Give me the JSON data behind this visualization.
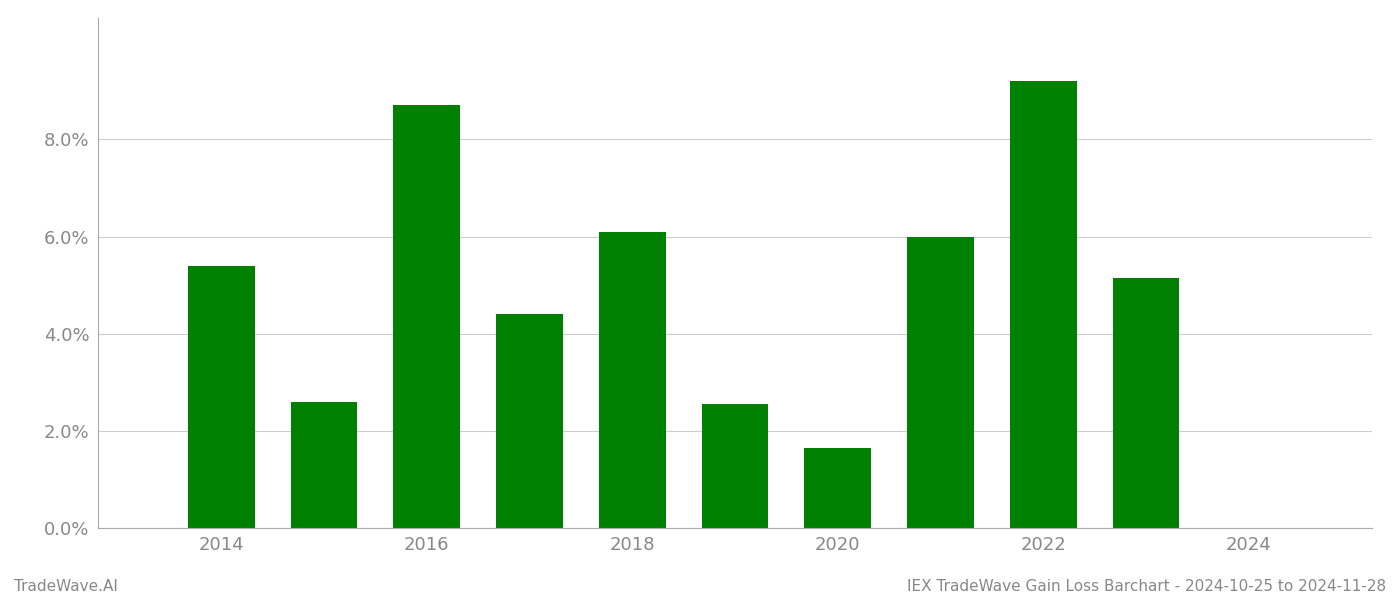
{
  "years": [
    2014,
    2015,
    2016,
    2017,
    2018,
    2019,
    2020,
    2021,
    2022,
    2023
  ],
  "values": [
    0.054,
    0.026,
    0.087,
    0.044,
    0.061,
    0.0255,
    0.0165,
    0.06,
    0.092,
    0.0515
  ],
  "bar_color": "#008000",
  "background_color": "#ffffff",
  "grid_color": "#cccccc",
  "axis_color": "#aaaaaa",
  "tick_color": "#888888",
  "ylim": [
    0,
    0.105
  ],
  "yticks": [
    0.0,
    0.02,
    0.04,
    0.06,
    0.08
  ],
  "footer_left": "TradeWave.AI",
  "footer_right": "IEX TradeWave Gain Loss Barchart - 2024-10-25 to 2024-11-28",
  "footer_fontsize": 11,
  "tick_fontsize": 13,
  "bar_width": 0.65,
  "xlim_left": 2012.8,
  "xlim_right": 2025.2
}
